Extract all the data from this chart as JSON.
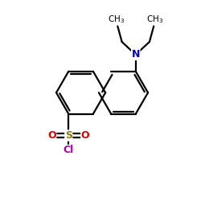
{
  "bg_color": "#ffffff",
  "bond_color": "#000000",
  "N_color": "#0000cc",
  "S_color": "#8b8000",
  "O_color": "#dd0000",
  "Cl_color": "#aa00aa",
  "line_width": 1.6,
  "figsize": [
    2.5,
    2.5
  ],
  "dpi": 100,
  "xlim": [
    0,
    10
  ],
  "ylim": [
    0,
    10
  ]
}
